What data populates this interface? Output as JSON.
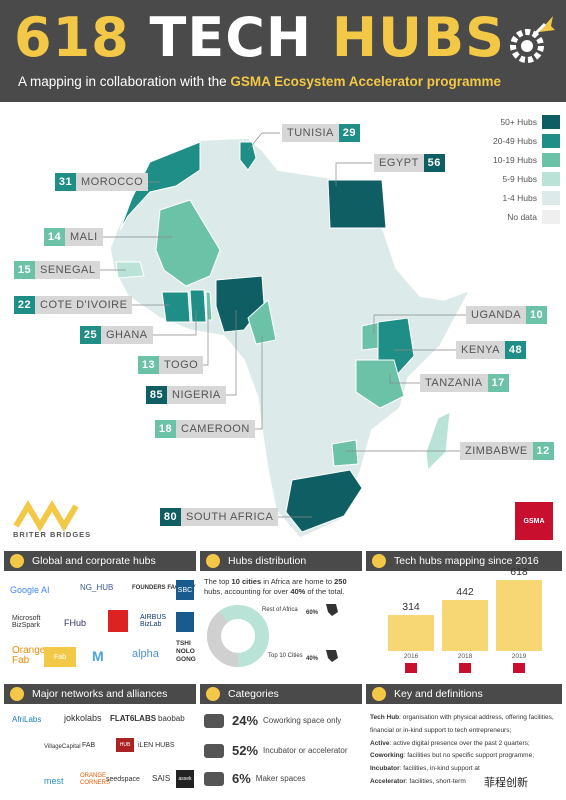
{
  "header": {
    "title_num": "618",
    "title_tech": "TECH",
    "title_hubs": "HUBS",
    "subtitle_pre": "A mapping in collaboration with the",
    "subtitle_bold": "GSMA Ecosystem Accelerator programme"
  },
  "colors": {
    "c50": "#0e5e63",
    "c20": "#1f8e86",
    "c10": "#6cc2a6",
    "c5": "#b9e3d6",
    "c1": "#dcebea",
    "none": "#efefef",
    "yellow": "#f3c846",
    "dark": "#4a4a4a"
  },
  "legend": [
    {
      "label": "50+ Hubs",
      "color": "#0e5e63"
    },
    {
      "label": "20-49 Hubs",
      "color": "#1f8e86"
    },
    {
      "label": "10-19 Hubs",
      "color": "#6cc2a6"
    },
    {
      "label": "5-9 Hubs",
      "color": "#b9e3d6"
    },
    {
      "label": "1-4 Hubs",
      "color": "#dcebea"
    },
    {
      "label": "No data",
      "color": "#efefef"
    }
  ],
  "countries": {
    "tunisia": {
      "name": "TUNISIA",
      "count": "29"
    },
    "egypt": {
      "name": "EGYPT",
      "count": "56"
    },
    "morocco": {
      "name": "MOROCCO",
      "count": "31"
    },
    "mali": {
      "name": "MALI",
      "count": "14"
    },
    "senegal": {
      "name": "SENEGAL",
      "count": "15"
    },
    "cote": {
      "name": "COTE D'IVOIRE",
      "count": "22"
    },
    "ghana": {
      "name": "GHANA",
      "count": "25"
    },
    "togo": {
      "name": "TOGO",
      "count": "13"
    },
    "nigeria": {
      "name": "NIGERIA",
      "count": "85"
    },
    "cameroon": {
      "name": "CAMEROON",
      "count": "18"
    },
    "uganda": {
      "name": "UGANDA",
      "count": "10"
    },
    "kenya": {
      "name": "KENYA",
      "count": "48"
    },
    "tanzania": {
      "name": "TANZANIA",
      "count": "17"
    },
    "zimbabwe": {
      "name": "ZIMBABWE",
      "count": "12"
    },
    "south_africa": {
      "name": "SOUTH AFRICA",
      "count": "80"
    }
  },
  "briter": {
    "name": "BRITER BRIDGES"
  },
  "gsma_logo": "GSMA",
  "sections": {
    "global": "Global and corporate hubs",
    "distribution": "Hubs distribution",
    "mapping": "Tech hubs mapping since 2016",
    "networks": "Major networks and alliances",
    "categories": "Categories",
    "key": "Key and definitions"
  },
  "global_logos": [
    "Google AI",
    "NG_HUB",
    "FOUNDERS FACTORY",
    "SBC",
    "Microsoft BizSpark",
    "FHub",
    "AIRBUS BizLab",
    "Orange Fab",
    "Fab",
    "TSHI NOLO GONG"
  ],
  "distribution": {
    "text_pre": "The top",
    "text_b1": "10 cities",
    "text_mid": "in Africa are home to",
    "text_b2": "250",
    "text_mid2": "hubs, accounting for over",
    "text_b3": "40%",
    "text_post": "of the total.",
    "rest_label": "Rest of Africa",
    "rest_pct": "60%",
    "top_label": "Top 10 Cities",
    "top_pct": "40%",
    "top_fraction": 0.4
  },
  "mapping": {
    "bars": [
      {
        "year": "2016",
        "value": 314
      },
      {
        "year": "2018",
        "value": 442
      },
      {
        "year": "2019",
        "value": 618
      }
    ],
    "labels": [
      "314",
      "442",
      "618"
    ]
  },
  "network_logos": [
    "AfriLabs",
    "jokkolabs",
    "FLAT6LABS",
    "baobab",
    "VillageCapital",
    "FAB",
    "HUB",
    "iLEN HUBS",
    "mest",
    "ORANGE CORNERS",
    "seedspace",
    "SAIS",
    "assek"
  ],
  "categories": [
    {
      "pct": "24%",
      "text": "Coworking space only"
    },
    {
      "pct": "52%",
      "text": "Incubator or accelerator"
    },
    {
      "pct": "6%",
      "text": "Maker spaces"
    }
  ],
  "definitions": [
    {
      "term": "Tech Hub",
      "text": ": organisation with physical address, offering facilities, financial or in-kind support to tech entrepreneurs;"
    },
    {
      "term": "Active",
      "text": ": active digital presence over the past 2 quarters;"
    },
    {
      "term": "Coworking",
      "text": ": facilities but no specific support programme;"
    },
    {
      "term": "Incubator",
      "text": ": facilities, in-kind support at"
    },
    {
      "term": "Accelerator",
      "text": ": facilities, short-term"
    }
  ],
  "watermark": "菲程创新"
}
